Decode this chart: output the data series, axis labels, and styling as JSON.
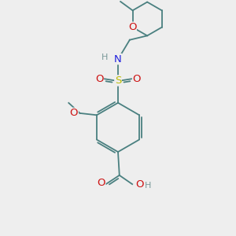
{
  "bg_color": "#eeeeee",
  "bond_color": "#4a8080",
  "bond_width": 1.3,
  "atom_colors": {
    "N": "#2222dd",
    "O": "#cc1111",
    "S": "#bbbb00",
    "H": "#7a9a9a"
  },
  "font_size": 8.5,
  "fig_size": [
    3.0,
    3.0
  ],
  "dpi": 100,
  "xlim": [
    0,
    10
  ],
  "ylim": [
    0,
    10
  ]
}
